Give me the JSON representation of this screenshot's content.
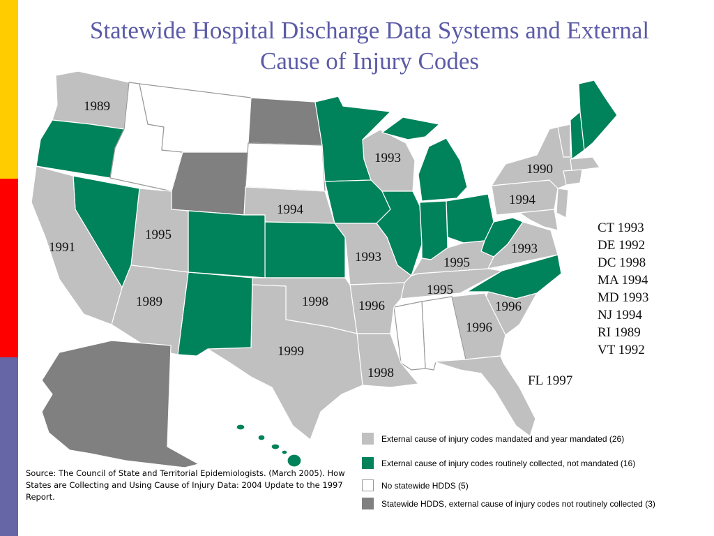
{
  "title_lines": [
    "Statewide Hospital Discharge Data Systems and External",
    "Cause of Injury Codes"
  ],
  "colors": {
    "mandated": "#C0C0C0",
    "routinely_collected": "#00825A",
    "no_hdds": "#FFFFFF",
    "not_collected": "#808080",
    "title": "#5B5BA8"
  },
  "map_labels": [
    {
      "state": "WA",
      "text": "1989"
    },
    {
      "state": "CA",
      "text": "1991"
    },
    {
      "state": "UT",
      "text": "1995"
    },
    {
      "state": "AZ",
      "text": "1989"
    },
    {
      "state": "NE",
      "text": "1994"
    },
    {
      "state": "OK",
      "text": "1998"
    },
    {
      "state": "TX",
      "text": "1999"
    },
    {
      "state": "WI",
      "text": "1993"
    },
    {
      "state": "MO",
      "text": "1993"
    },
    {
      "state": "AR",
      "text": "1996"
    },
    {
      "state": "LA",
      "text": "1998"
    },
    {
      "state": "KY",
      "text": "1995"
    },
    {
      "state": "TN",
      "text": "1995"
    },
    {
      "state": "GA",
      "text": "1996"
    },
    {
      "state": "SC",
      "text": "1996"
    },
    {
      "state": "VA",
      "text": "1993"
    },
    {
      "state": "PA",
      "text": "1994"
    },
    {
      "state": "NY",
      "text": "1990"
    }
  ],
  "side_list": [
    "CT 1993",
    "DE 1992",
    "DC 1998",
    "MA 1994",
    "MD 1993",
    "NJ 1994",
    "RI 1989",
    "VT 1992"
  ],
  "fl_label": "FL 1997",
  "legend": [
    {
      "label": "External cause of injury codes mandated and year mandated (26)",
      "color": "#C0C0C0"
    },
    {
      "label": "External cause of injury codes routinely collected, not mandated (16)",
      "color": "#00825A"
    },
    {
      "label": "No statewide HDDS (5)",
      "color": "#FFFFFF"
    },
    {
      "label": "Statewide HDDS, external cause of injury codes not routinely collected (3)",
      "color": "#808080"
    }
  ],
  "source": "Source: The Council of State and Territorial Epidemiologists. (March 2005). How States are Collecting and Using Cause of Injury Data: 2004 Update to the 1997 Report."
}
